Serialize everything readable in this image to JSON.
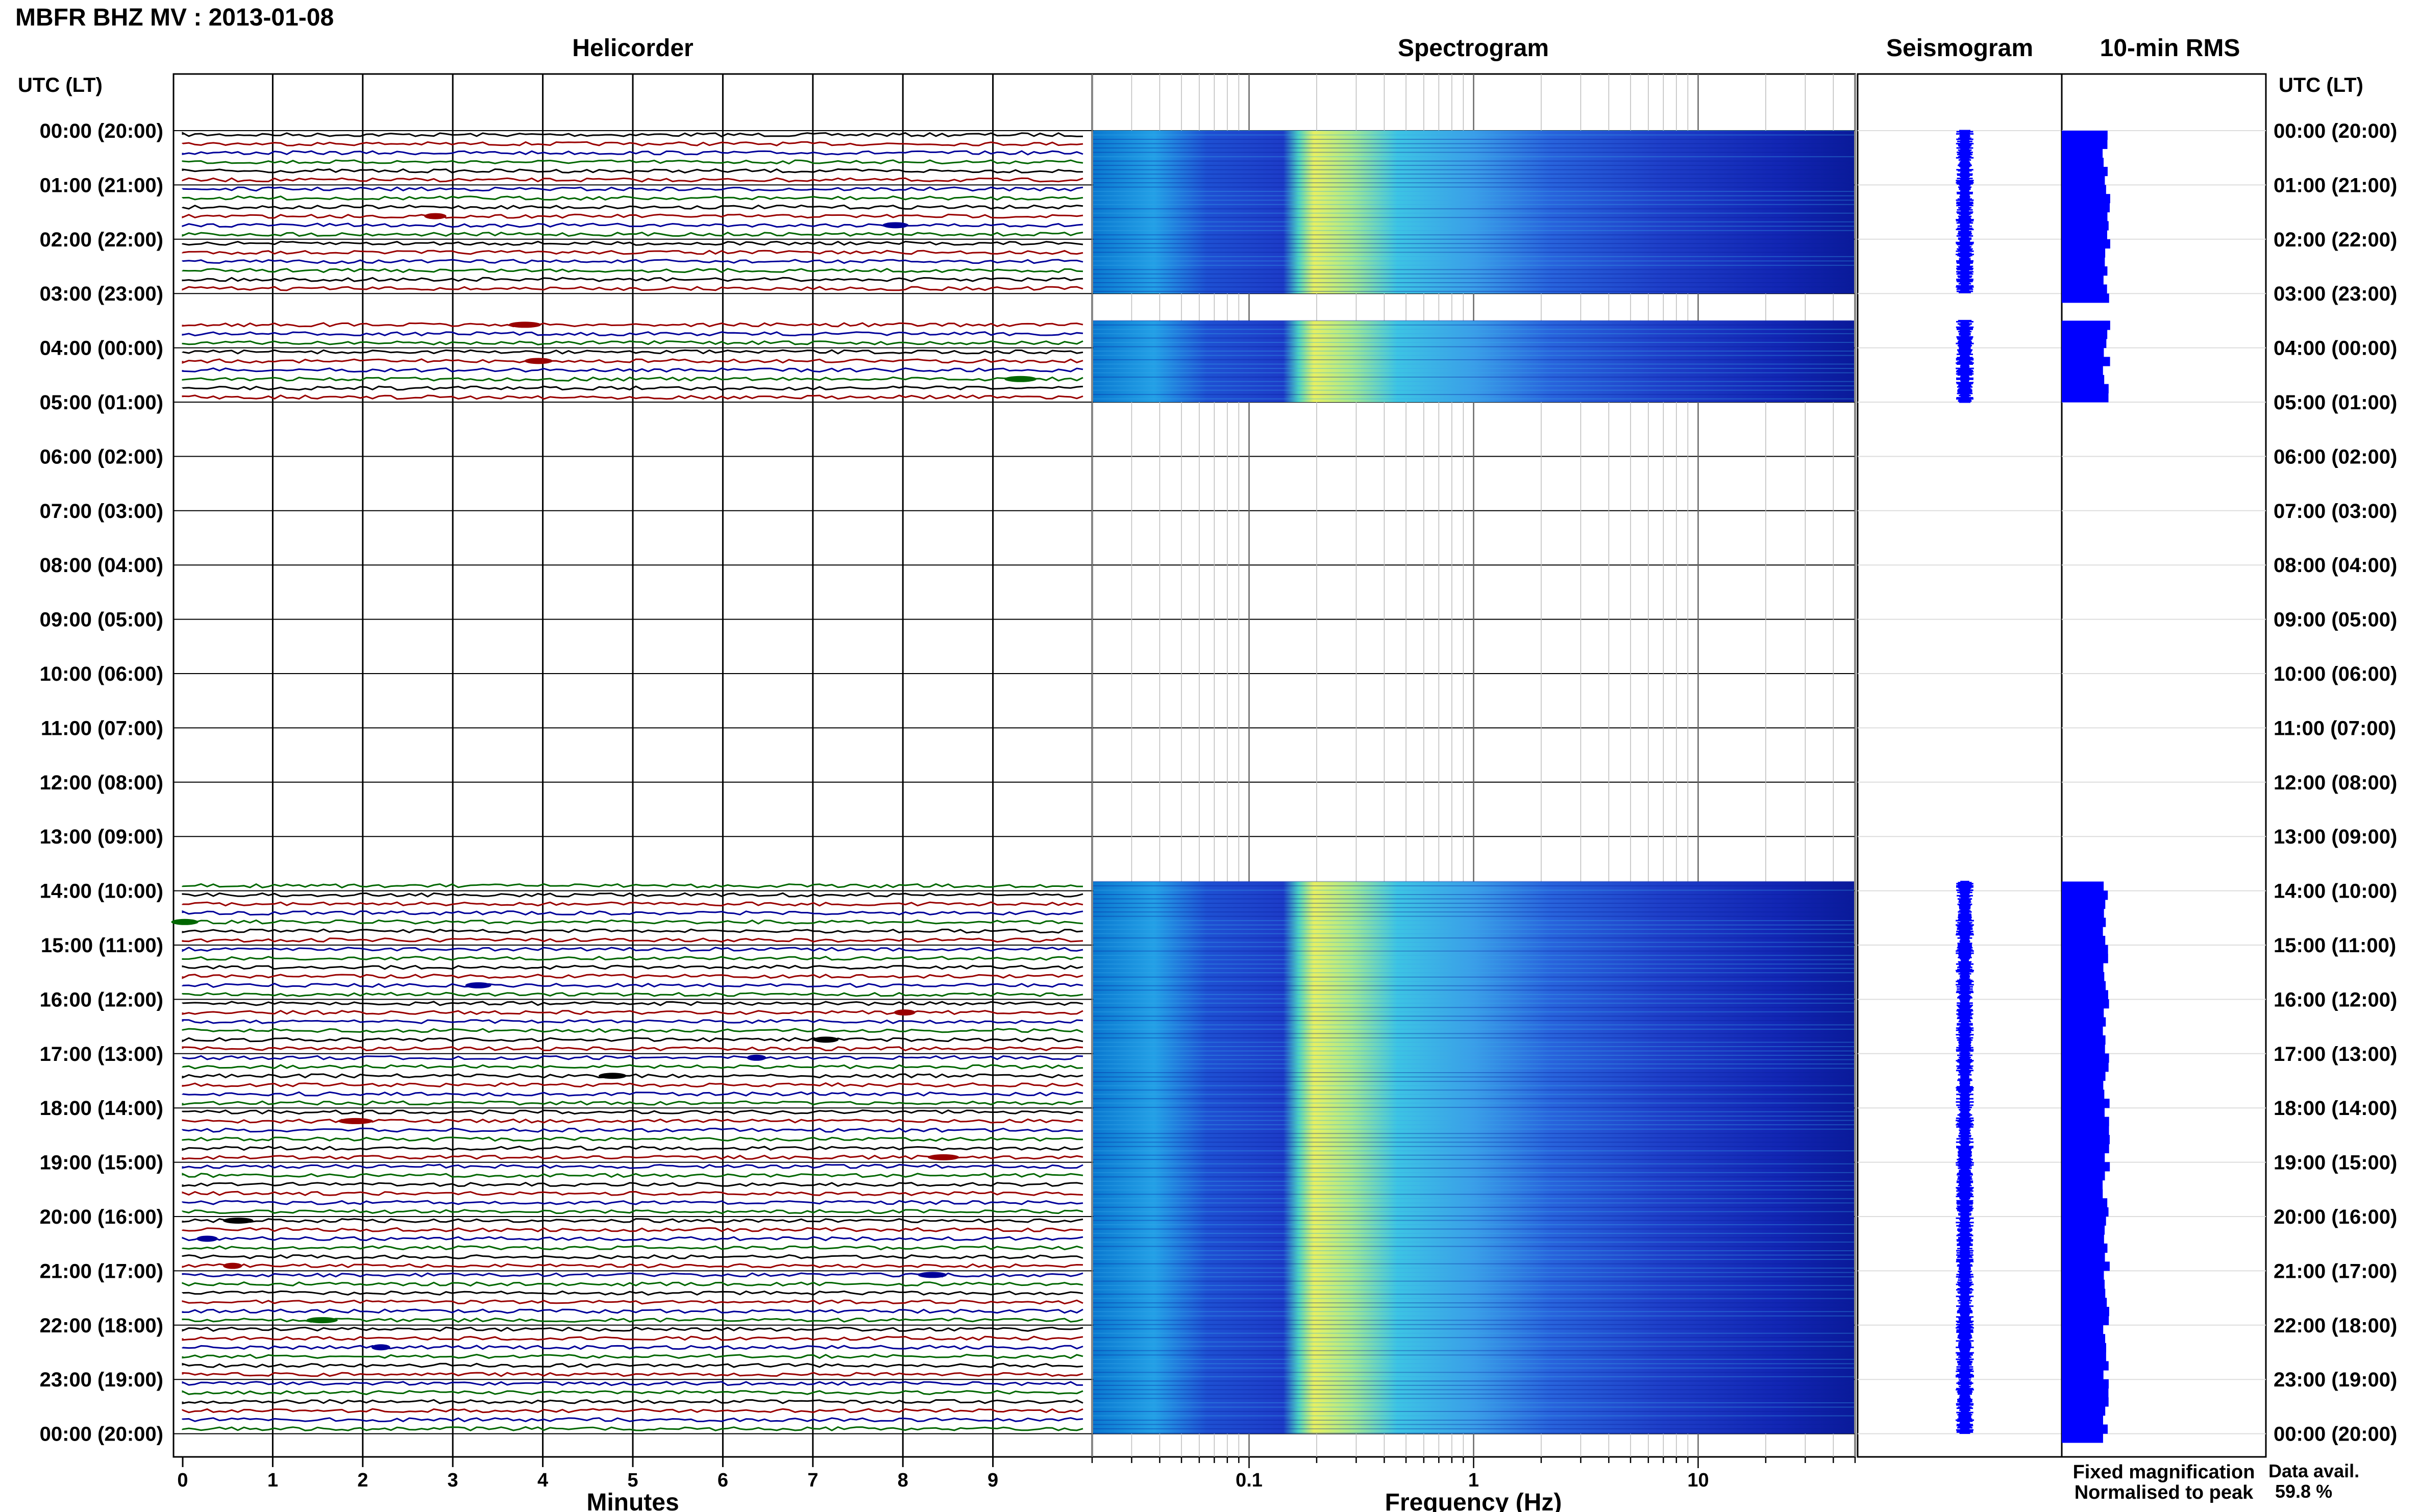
{
  "window_title": "MBFR BHZ MV : 2013-01-08",
  "panels": {
    "helicorder": "Helicorder",
    "spectrogram": "Spectrogram",
    "seismogram": "Seismogram",
    "rms": "10-min RMS"
  },
  "time_axis": {
    "title_left": "UTC (LT)",
    "title_right": "UTC (LT)",
    "labels": [
      "00:00 (20:00)",
      "01:00 (21:00)",
      "02:00 (22:00)",
      "03:00 (23:00)",
      "04:00 (00:00)",
      "05:00 (01:00)",
      "06:00 (02:00)",
      "07:00 (03:00)",
      "08:00 (04:00)",
      "09:00 (05:00)",
      "10:00 (06:00)",
      "11:00 (07:00)",
      "12:00 (08:00)",
      "13:00 (09:00)",
      "14:00 (10:00)",
      "15:00 (11:00)",
      "16:00 (12:00)",
      "17:00 (13:00)",
      "18:00 (14:00)",
      "19:00 (15:00)",
      "20:00 (16:00)",
      "21:00 (17:00)",
      "22:00 (18:00)",
      "23:00 (19:00)",
      "00:00 (20:00)"
    ]
  },
  "minutes_axis": {
    "label": "Minutes",
    "ticks": [
      "0",
      "1",
      "2",
      "3",
      "4",
      "5",
      "6",
      "7",
      "8",
      "9"
    ]
  },
  "frequency_axis": {
    "label": "Frequency (Hz)",
    "ticks": [
      "0.1",
      "1",
      "10"
    ],
    "range_hz": [
      0.02,
      50
    ],
    "scale": "log"
  },
  "legend": {
    "fixed": "Fixed magnification",
    "normalised": "Normalised to peak",
    "fixed_color": "#0000ff",
    "normalised_color": "#ff0000"
  },
  "data_avail": {
    "label": "Data avail.",
    "value": "59.8 %"
  },
  "colors": {
    "trace_cycle": [
      "#000000",
      "#990000",
      "#000099",
      "#006600"
    ],
    "spectro_low": "#0a1fb4",
    "spectro_high": "#e8f060",
    "seismo": "#0000ff",
    "rms": "#0000ff"
  },
  "chart_data": {
    "type": "heatmap",
    "station": "MBFR BHZ MV",
    "date": "2013-01-08",
    "hours_span": 24,
    "data_intervals_utc_hours": [
      [
        0.0,
        3.0
      ],
      [
        3.5,
        5.0
      ],
      [
        13.83,
        24.0
      ]
    ],
    "data_availability_percent": 59.8,
    "helicorder": {
      "xlim_minutes": [
        0,
        10
      ],
      "rows_per_hour": 6
    },
    "spectrogram": {
      "xlim_hz": [
        0.02,
        50
      ],
      "x_scale": "log",
      "peak_energy_band_hz": [
        0.15,
        0.5
      ]
    },
    "rms_10min": {
      "segments_utc_hours": [
        [
          0.0,
          3.0
        ],
        [
          3.5,
          5.0
        ],
        [
          13.83,
          24.0
        ]
      ]
    }
  }
}
